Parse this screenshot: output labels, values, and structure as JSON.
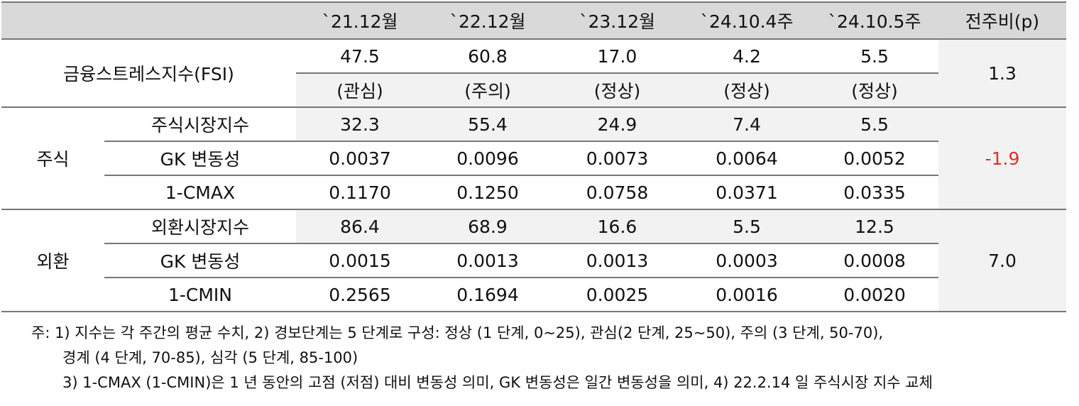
{
  "columns": [
    "`21.12월",
    "`22.12월",
    "`23.12월",
    "`24.10.4주",
    "`24.10.5주",
    "전주비(p)"
  ],
  "fsi": {
    "label": "금융스트레스지수(FSI)",
    "values": [
      "47.5",
      "60.8",
      "17.0",
      "4.2",
      "5.5"
    ],
    "status": [
      "(관심)",
      "(주의)",
      "(정상)",
      "(정상)",
      "(정상)"
    ],
    "change": "1.3"
  },
  "stock": {
    "label": "주식",
    "change": "-1.9",
    "change_color": "#e0302c",
    "rows": [
      {
        "label": "주식시장지수",
        "values": [
          "32.3",
          "55.4",
          "24.9",
          "7.4",
          "5.5"
        ]
      },
      {
        "label": "GK 변동성",
        "values": [
          "0.0037",
          "0.0096",
          "0.0073",
          "0.0064",
          "0.0052"
        ]
      },
      {
        "label": "1-CMAX",
        "values": [
          "0.1170",
          "0.1250",
          "0.0758",
          "0.0371",
          "0.0335"
        ]
      }
    ]
  },
  "fx": {
    "label": "외환",
    "change": "7.0",
    "rows": [
      {
        "label": "외환시장지수",
        "values": [
          "86.4",
          "68.9",
          "16.6",
          "5.5",
          "12.5"
        ]
      },
      {
        "label": "GK 변동성",
        "values": [
          "0.0015",
          "0.0013",
          "0.0013",
          "0.0003",
          "0.0008"
        ]
      },
      {
        "label": "1-CMIN",
        "values": [
          "0.2565",
          "0.1694",
          "0.0025",
          "0.0016",
          "0.0020"
        ]
      }
    ]
  },
  "notes": [
    "주: 1) 지수는 각 주간의 평균 수치, 2) 경보단계는 5 단계로 구성: 정상 (1 단계, 0~25), 관심(2 단계, 25~50), 주의 (3 단계, 50-70),",
    "경계 (4 단계, 70-85), 심각 (5 단계, 85-100)",
    "3) 1-CMAX (1-CMIN)은 1 년 동안의 고점 (저점) 대비 변동성 의미, GK 변동성은 일간 변동성을 의미, 4) 22.2.14 일 주식시장 지수 교체"
  ]
}
